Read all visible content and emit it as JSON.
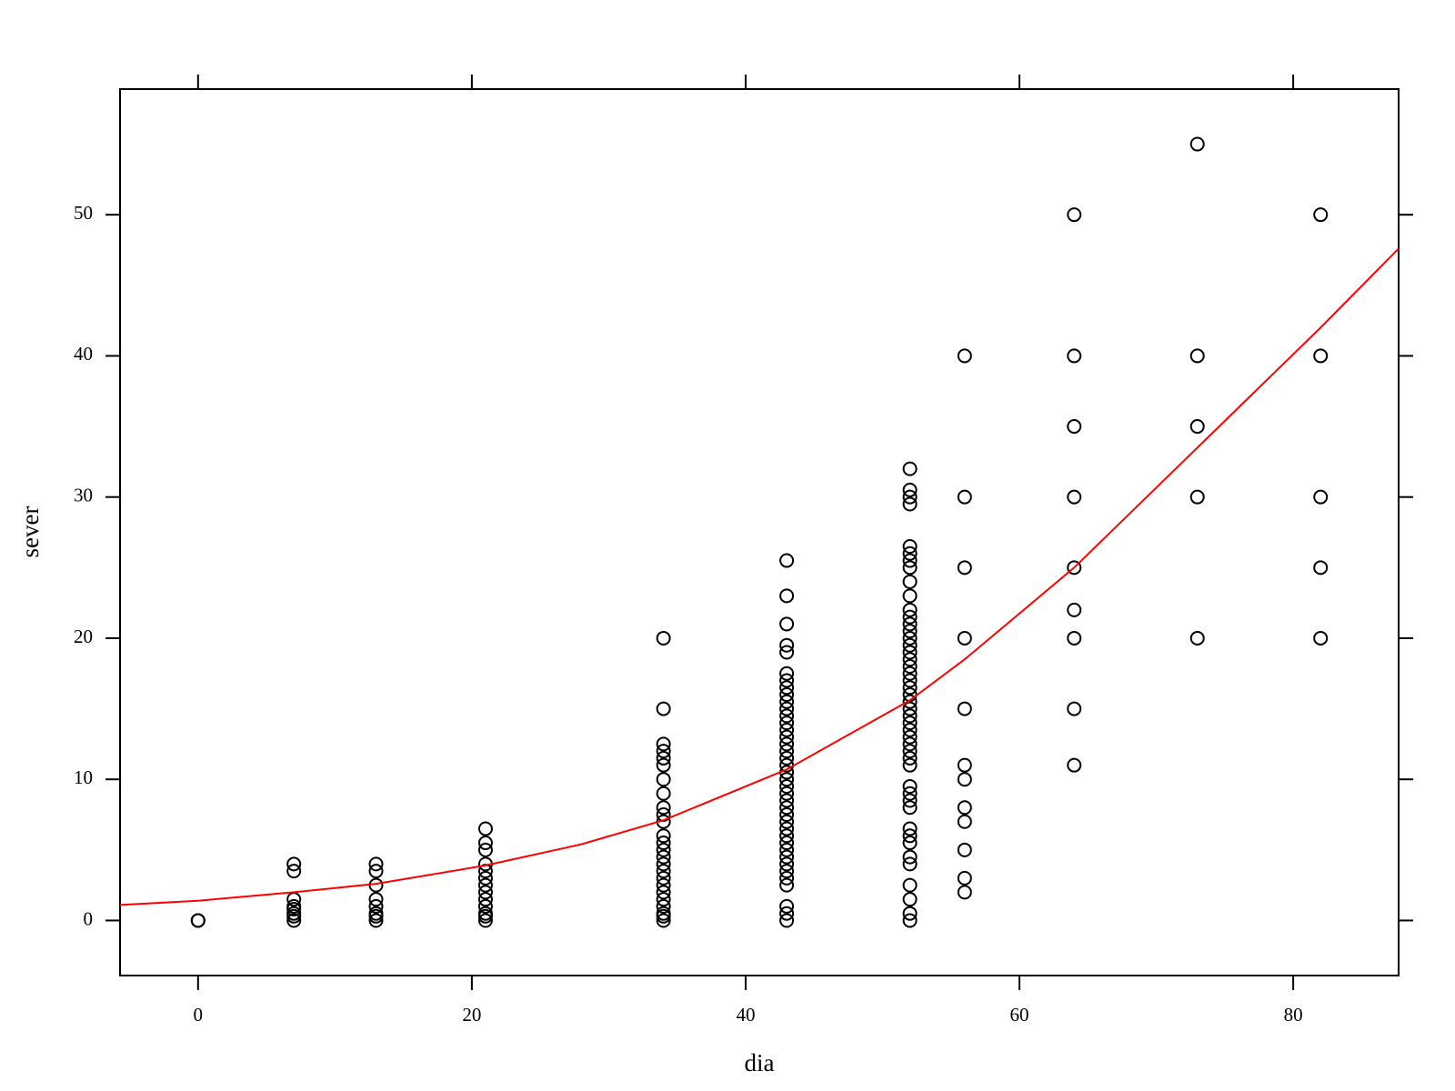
{
  "chart_data": {
    "type": "scatter",
    "x_label": "dia",
    "y_label": "sever",
    "xlim": [
      -5.7,
      87.7
    ],
    "ylim": [
      -3.9,
      58.9
    ],
    "xticks": [
      0,
      20,
      40,
      60,
      80
    ],
    "yticks": [
      0,
      10,
      20,
      30,
      40,
      50
    ],
    "point_color": "#000000",
    "points": [
      {
        "x": 0,
        "y": [
          0,
          0,
          0
        ]
      },
      {
        "x": 7,
        "y": [
          0,
          0.3,
          0.5,
          0.8,
          1,
          1.5,
          3.5,
          4
        ]
      },
      {
        "x": 13,
        "y": [
          0,
          0.3,
          0.5,
          1,
          1.5,
          2.5,
          3.5,
          4
        ]
      },
      {
        "x": 21,
        "y": [
          0,
          0.3,
          0.5,
          1,
          1.5,
          2,
          2.5,
          3,
          3.5,
          4,
          5,
          5.5,
          6.5
        ]
      },
      {
        "x": 34,
        "y": [
          0,
          0.3,
          0.5,
          1,
          1.5,
          2,
          2.5,
          3,
          3.5,
          4,
          4.5,
          5,
          5.5,
          6,
          7,
          7.5,
          8,
          9,
          10,
          11,
          11.5,
          12,
          12.5,
          15,
          20
        ]
      },
      {
        "x": 43,
        "y": [
          0,
          0.5,
          1,
          2.5,
          3,
          3.5,
          4,
          4.5,
          5,
          5.5,
          6,
          6.5,
          7,
          7.5,
          8,
          8.5,
          9,
          9.5,
          10,
          10.5,
          11,
          11.5,
          12,
          12.5,
          13,
          13.5,
          14,
          14.5,
          15,
          15.5,
          16,
          16.5,
          17,
          17.5,
          19,
          19.5,
          21,
          23,
          25.5
        ]
      },
      {
        "x": 52,
        "y": [
          0,
          0.5,
          1.5,
          2.5,
          4,
          4.5,
          5.5,
          6,
          6.5,
          8,
          8.5,
          9,
          9.5,
          11,
          11.5,
          12,
          12.5,
          13,
          13.5,
          14,
          14.5,
          15,
          15.5,
          16,
          16.5,
          17,
          17.5,
          18,
          18.5,
          19,
          19.5,
          20,
          20.5,
          21,
          21.5,
          22,
          23,
          24,
          25,
          25.5,
          26,
          26.5,
          29.5,
          30,
          30.5,
          32
        ]
      },
      {
        "x": 56,
        "y": [
          2,
          3,
          5,
          7,
          8,
          10,
          11,
          15,
          20,
          25,
          30,
          40
        ]
      },
      {
        "x": 64,
        "y": [
          11,
          15,
          20,
          22,
          25,
          30,
          35,
          40,
          50
        ]
      },
      {
        "x": 73,
        "y": [
          20,
          30,
          35,
          40,
          55
        ]
      },
      {
        "x": 82,
        "y": [
          20,
          25,
          30,
          40,
          50
        ]
      }
    ],
    "curve": {
      "color": "#ff0000",
      "x": [
        -5.7,
        0,
        7,
        13,
        21,
        28,
        34,
        43,
        52,
        56,
        64,
        73,
        82,
        87.7
      ],
      "y": [
        1.1,
        1.4,
        2.0,
        2.6,
        3.9,
        5.4,
        7.1,
        10.7,
        15.6,
        18.5,
        25,
        33.5,
        42,
        47.6
      ]
    }
  }
}
